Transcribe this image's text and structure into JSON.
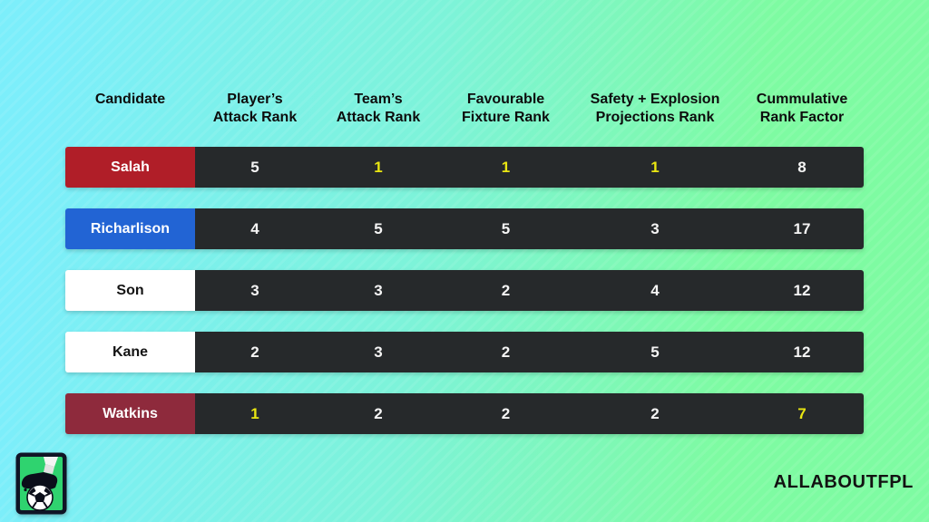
{
  "background": {
    "gradient_left": "#7ceefa",
    "gradient_mid": "#7df3d9",
    "gradient_right": "#7efba2",
    "texture": "subtle-diagonal-stripes"
  },
  "branding": {
    "wordmark": "ALLABOUTFPL",
    "logo_icon": "football-boot-on-ball-logo"
  },
  "chart_data": {
    "type": "table",
    "title": "",
    "legend_position": "none",
    "columns": [
      {
        "label": "Candidate"
      },
      {
        "label": "Player’s\nAttack Rank"
      },
      {
        "label": "Team’s\nAttack Rank"
      },
      {
        "label": "Favourable\nFixture Rank"
      },
      {
        "label": "Safety + Explosion\nProjections Rank"
      },
      {
        "label": "Cummulative\nRank Factor"
      }
    ],
    "rows": [
      {
        "candidate": "Salah",
        "candidate_bg": "#b01e28",
        "candidate_color": "#ffffff",
        "values": [
          "5",
          "1",
          "1",
          "1",
          "8"
        ],
        "highlighted": [
          false,
          true,
          true,
          true,
          false
        ]
      },
      {
        "candidate": "Richarlison",
        "candidate_bg": "#2264d4",
        "candidate_color": "#ffffff",
        "values": [
          "4",
          "5",
          "5",
          "3",
          "17"
        ],
        "highlighted": [
          false,
          false,
          false,
          false,
          false
        ]
      },
      {
        "candidate": "Son",
        "candidate_bg": "#ffffff",
        "candidate_color": "#141414",
        "values": [
          "3",
          "3",
          "2",
          "4",
          "12"
        ],
        "highlighted": [
          false,
          false,
          false,
          false,
          false
        ]
      },
      {
        "candidate": "Kane",
        "candidate_bg": "#ffffff",
        "candidate_color": "#141414",
        "values": [
          "2",
          "3",
          "2",
          "5",
          "12"
        ],
        "highlighted": [
          false,
          false,
          false,
          false,
          false
        ]
      },
      {
        "candidate": "Watkins",
        "candidate_bg": "#8e2a3c",
        "candidate_color": "#ffffff",
        "values": [
          "1",
          "2",
          "2",
          "2",
          "7"
        ],
        "highlighted": [
          true,
          false,
          false,
          false,
          true
        ]
      }
    ],
    "colors": {
      "cell_bg": "#26292b",
      "value_color": "#f5f5f5",
      "highlight_color": "#e9e612",
      "header_color": "#0d0d0d"
    }
  }
}
